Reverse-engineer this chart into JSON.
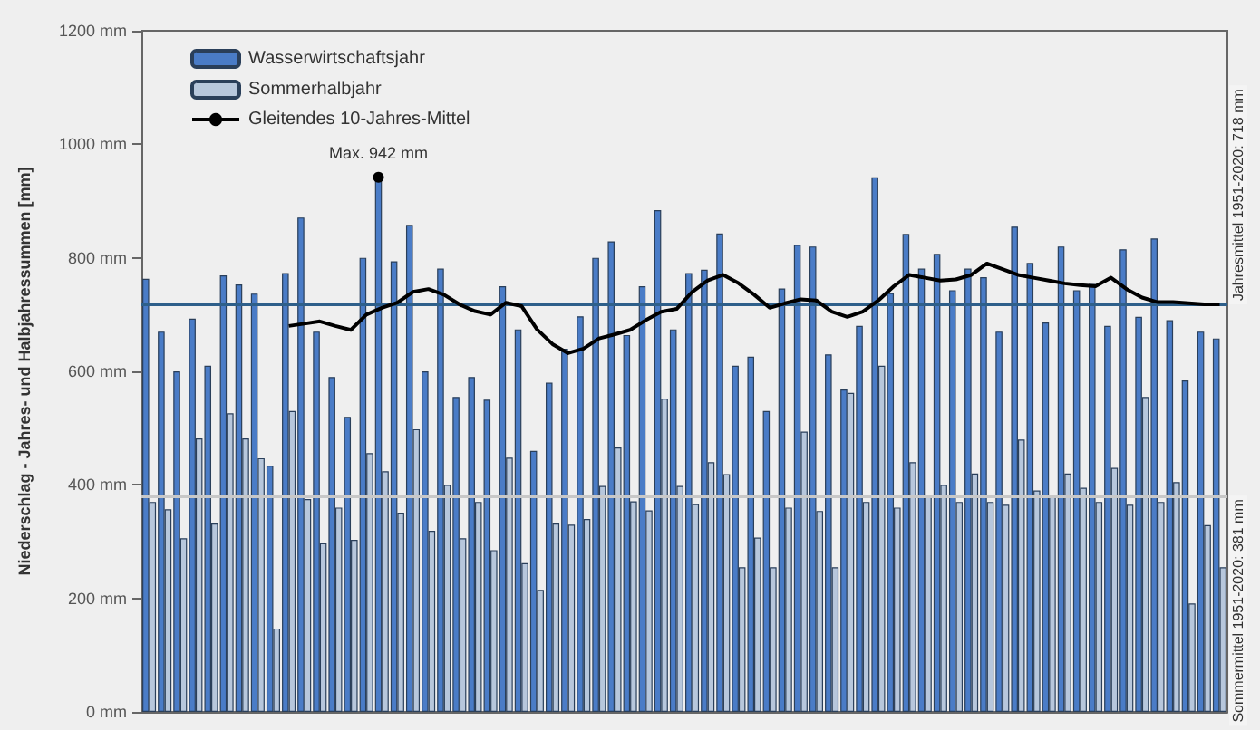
{
  "chart_data": {
    "type": "bar",
    "ylabel": "Niederschlag - Jahres- und Halbjahressummen [mm]",
    "categories": [
      null,
      null,
      null,
      null,
      null,
      null,
      null,
      null,
      null,
      null,
      null,
      null,
      null,
      null,
      null,
      null,
      null,
      null,
      null,
      null,
      null,
      null,
      null,
      null,
      null,
      null,
      null,
      null,
      null,
      null,
      null,
      null,
      null,
      null,
      null,
      null,
      null,
      null,
      null,
      null,
      null,
      null,
      null,
      null,
      null,
      null,
      null,
      null,
      null,
      null,
      null,
      null,
      null,
      null,
      null,
      null,
      null,
      null,
      null,
      null,
      null,
      null,
      null,
      null,
      null,
      null,
      null,
      null,
      null,
      null
    ],
    "series": [
      {
        "name": "Wasserwirtschaftsjahr",
        "color": "#4a7cc7",
        "values": [
          763,
          670,
          600,
          693,
          610,
          769,
          753,
          737,
          434,
          773,
          871,
          670,
          590,
          520,
          800,
          942,
          794,
          858,
          600,
          781,
          555,
          590,
          550,
          750,
          674,
          460,
          580,
          640,
          697,
          800,
          829,
          664,
          750,
          884,
          674,
          773,
          779,
          843,
          610,
          626,
          530,
          746,
          823,
          820,
          630,
          568,
          680,
          942,
          738,
          842,
          781,
          807,
          743,
          781,
          766,
          670,
          855,
          791,
          686,
          820,
          743,
          754,
          680,
          815,
          696,
          834,
          690,
          584,
          670,
          658
        ]
      },
      {
        "name": "Sommerhalbjahr",
        "color": "#b7c7dc",
        "values": [
          370,
          357,
          306,
          482,
          332,
          526,
          482,
          447,
          147,
          530,
          375,
          297,
          360,
          303,
          456,
          424,
          351,
          498,
          319,
          400,
          306,
          370,
          285,
          448,
          262,
          215,
          332,
          330,
          340,
          398,
          466,
          371,
          355,
          552,
          398,
          366,
          440,
          419,
          255,
          307,
          255,
          360,
          494,
          354,
          255,
          562,
          370,
          610,
          360,
          440,
          380,
          400,
          370,
          420,
          370,
          365,
          480,
          390,
          380,
          420,
          395,
          370,
          430,
          365,
          555,
          370,
          405,
          191,
          329,
          255
        ]
      },
      {
        "name": "Gleitendes 10-Jahres-Mittel",
        "type": "line",
        "color": "#000000",
        "values": [
          null,
          null,
          null,
          null,
          null,
          null,
          null,
          null,
          null,
          680,
          684,
          688,
          680,
          673,
          700,
          712,
          721,
          740,
          745,
          735,
          718,
          706,
          700,
          721,
          715,
          674,
          648,
          632,
          640,
          658,
          665,
          673,
          690,
          705,
          710,
          740,
          760,
          770,
          755,
          735,
          712,
          720,
          727,
          725,
          705,
          696,
          705,
          725,
          750,
          770,
          765,
          760,
          762,
          770,
          790,
          780,
          770,
          765,
          760,
          755,
          752,
          750,
          765,
          745,
          730,
          722,
          722,
          720,
          718,
          718
        ]
      }
    ],
    "ylim": [
      0,
      1200
    ],
    "yticks": [
      {
        "value": 0,
        "label": "0 mm"
      },
      {
        "value": 200,
        "label": "200 mm"
      },
      {
        "value": 400,
        "label": "400 mm"
      },
      {
        "value": 600,
        "label": "600 mm"
      },
      {
        "value": 800,
        "label": "800 mm"
      },
      {
        "value": 1000,
        "label": "1000 mm"
      },
      {
        "value": 1200,
        "label": "1200 mm"
      }
    ],
    "ref_lines": [
      {
        "axis": "y",
        "value": 718,
        "label": "Jahresmittel 1951-2020: 718 mm",
        "color": "#2e5f8a"
      },
      {
        "axis": "y",
        "value": 381,
        "label": "Sommermittel 1951-2020: 381 mm",
        "color": "#c8c8c8"
      }
    ],
    "annotations": [
      {
        "text": "Max. 942 mm",
        "y": 942
      }
    ],
    "legend": "top left",
    "grid": false,
    "marker": "none",
    "line_style": "solid"
  }
}
